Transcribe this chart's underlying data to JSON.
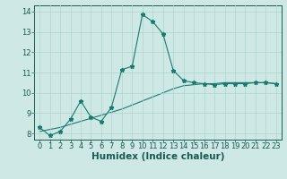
{
  "xlabel": "Humidex (Indice chaleur)",
  "ylabel": "",
  "background_color": "#cde8e5",
  "line_color": "#1a7a6e",
  "line_color2": "#1a7a6e",
  "xlim": [
    -0.5,
    23.5
  ],
  "ylim": [
    7.7,
    14.3
  ],
  "xticks": [
    0,
    1,
    2,
    3,
    4,
    5,
    6,
    7,
    8,
    9,
    10,
    11,
    12,
    13,
    14,
    15,
    16,
    17,
    18,
    19,
    20,
    21,
    22,
    23
  ],
  "yticks": [
    8,
    9,
    10,
    11,
    12,
    13,
    14
  ],
  "curve1_x": [
    0,
    1,
    2,
    3,
    4,
    5,
    6,
    7,
    8,
    9,
    10,
    11,
    12,
    13,
    14,
    15,
    16,
    17,
    18,
    19,
    20,
    21,
    22,
    23
  ],
  "curve1_y": [
    8.3,
    7.9,
    8.1,
    8.7,
    9.6,
    8.8,
    8.6,
    9.3,
    11.15,
    11.3,
    13.85,
    13.5,
    12.9,
    11.1,
    10.6,
    10.5,
    10.45,
    10.4,
    10.45,
    10.45,
    10.45,
    10.5,
    10.5,
    10.45
  ],
  "curve2_x": [
    0,
    1,
    2,
    3,
    4,
    5,
    6,
    7,
    8,
    9,
    10,
    11,
    12,
    13,
    14,
    15,
    16,
    17,
    18,
    19,
    20,
    21,
    22,
    23
  ],
  "curve2_y": [
    8.1,
    8.2,
    8.3,
    8.45,
    8.6,
    8.75,
    8.9,
    9.05,
    9.2,
    9.4,
    9.6,
    9.8,
    10.0,
    10.2,
    10.35,
    10.4,
    10.45,
    10.45,
    10.5,
    10.5,
    10.5,
    10.5,
    10.5,
    10.45
  ],
  "grid_color": "#aed4ce",
  "tick_fontsize": 6,
  "xlabel_fontsize": 7.5
}
